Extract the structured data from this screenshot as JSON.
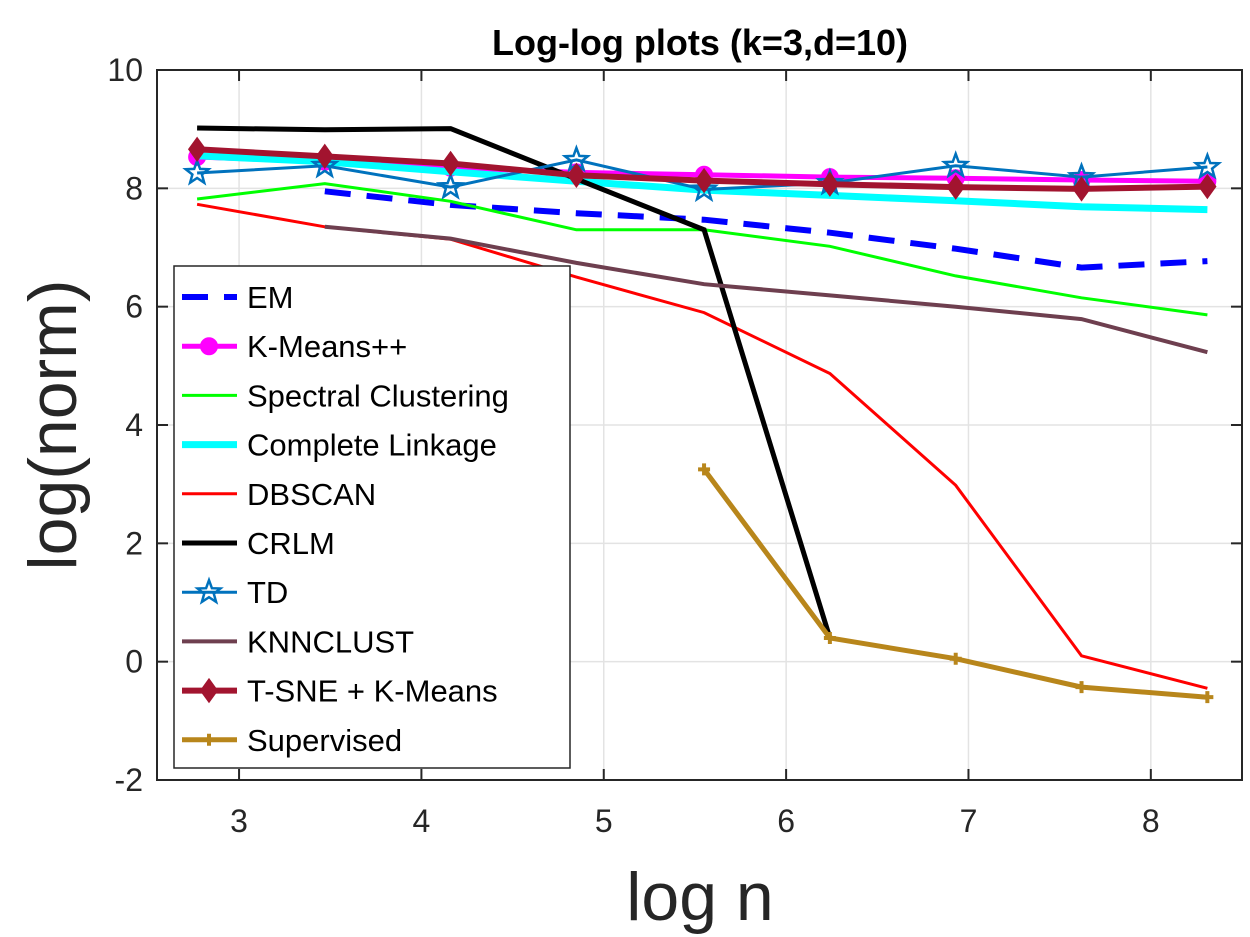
{
  "chart_data": {
    "type": "line",
    "title": "Log-log plots (k=3,d=10)",
    "xlabel": "log n",
    "ylabel": "log(norm)",
    "xlim": [
      2.55,
      8.5
    ],
    "ylim": [
      -2,
      10
    ],
    "xticks": [
      3,
      4,
      5,
      6,
      7,
      8
    ],
    "yticks": [
      -2,
      0,
      2,
      4,
      6,
      8,
      10
    ],
    "grid": true,
    "legend_position": "left",
    "series": [
      {
        "name": "EM",
        "color": "#0000FF",
        "line_width": 6,
        "dash": "dashed",
        "marker": "none",
        "x": [
          3.47,
          4.16,
          4.85,
          5.55,
          6.24,
          6.93,
          7.62,
          8.31
        ],
        "y": [
          7.95,
          7.72,
          7.58,
          7.47,
          7.25,
          6.98,
          6.66,
          6.77
        ]
      },
      {
        "name": "K-Means++",
        "color": "#FF00FF",
        "line_width": 5,
        "dash": "solid",
        "marker": "circle",
        "x": [
          2.77,
          3.47,
          4.16,
          4.85,
          5.55,
          6.24,
          6.93,
          7.62,
          8.31
        ],
        "y": [
          8.53,
          8.45,
          8.35,
          8.27,
          8.23,
          8.19,
          8.17,
          8.14,
          8.12
        ]
      },
      {
        "name": "Spectral Clustering",
        "color": "#00FF00",
        "line_width": 3,
        "dash": "solid",
        "marker": "none",
        "x": [
          2.77,
          3.47,
          4.16,
          4.85,
          5.55,
          6.24,
          6.93,
          7.62,
          8.31
        ],
        "y": [
          7.82,
          8.08,
          7.78,
          7.3,
          7.3,
          7.02,
          6.52,
          6.15,
          5.86
        ]
      },
      {
        "name": "Complete Linkage",
        "color": "#00FFFF",
        "line_width": 7,
        "dash": "solid",
        "marker": "none",
        "x": [
          2.77,
          3.47,
          4.16,
          4.85,
          5.55,
          6.24,
          6.93,
          7.62,
          8.31
        ],
        "y": [
          8.55,
          8.45,
          8.28,
          8.12,
          7.97,
          7.88,
          7.79,
          7.69,
          7.64
        ]
      },
      {
        "name": "DBSCAN",
        "color": "#FF0000",
        "line_width": 3,
        "dash": "solid",
        "marker": "none",
        "x": [
          2.77,
          3.47,
          4.16,
          4.85,
          5.55,
          6.24,
          6.93,
          7.62,
          8.31
        ],
        "y": [
          7.73,
          7.35,
          7.14,
          6.5,
          5.9,
          4.87,
          2.98,
          0.1,
          -0.45
        ]
      },
      {
        "name": "CRLM",
        "color": "#000000",
        "line_width": 5,
        "dash": "solid",
        "marker": "none",
        "x": [
          2.77,
          3.47,
          4.16,
          4.85,
          5.55,
          6.24
        ],
        "y": [
          9.02,
          8.99,
          9.01,
          8.16,
          7.3,
          0.4
        ]
      },
      {
        "name": "TD",
        "color": "#0072BD",
        "line_width": 3,
        "dash": "solid",
        "marker": "star",
        "x": [
          2.77,
          3.47,
          4.16,
          4.85,
          5.55,
          6.24,
          6.93,
          7.62,
          8.31
        ],
        "y": [
          8.26,
          8.38,
          8.02,
          8.48,
          7.98,
          8.09,
          8.38,
          8.19,
          8.36
        ]
      },
      {
        "name": "KNNCLUST",
        "color": "#6E3F4F",
        "line_width": 4,
        "dash": "solid",
        "marker": "none",
        "x": [
          3.47,
          4.16,
          4.85,
          5.55,
          6.24,
          6.93,
          7.62,
          8.31
        ],
        "y": [
          7.35,
          7.15,
          6.74,
          6.38,
          6.19,
          6.0,
          5.79,
          5.23
        ]
      },
      {
        "name": "T-SNE + K-Means",
        "color": "#A2142F",
        "line_width": 6,
        "dash": "solid",
        "marker": "diamond",
        "x": [
          2.77,
          3.47,
          4.16,
          4.85,
          5.55,
          6.24,
          6.93,
          7.62,
          8.31
        ],
        "y": [
          8.66,
          8.54,
          8.42,
          8.22,
          8.13,
          8.07,
          8.02,
          7.99,
          8.03
        ]
      },
      {
        "name": "Supervised",
        "color": "#B8861B",
        "line_width": 5,
        "dash": "solid",
        "marker": "plus",
        "x": [
          5.55,
          6.24,
          6.93,
          7.62,
          8.31
        ],
        "y": [
          3.25,
          0.4,
          0.05,
          -0.43,
          -0.6
        ]
      }
    ]
  }
}
